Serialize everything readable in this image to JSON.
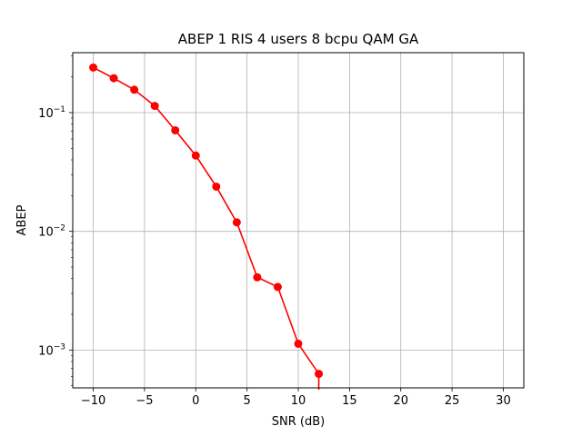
{
  "chart_data": {
    "type": "line",
    "title": "ABEP 1 RIS 4 users 8 bcpu QAM GA",
    "xlabel": "SNR (dB)",
    "ylabel": "ABEP",
    "x": [
      -10,
      -8,
      -6,
      -4,
      -2,
      0,
      2,
      4,
      6,
      8,
      10,
      12
    ],
    "series": [
      {
        "values": [
          0.24,
          0.195,
          0.156,
          0.114,
          0.071,
          0.0435,
          0.0238,
          0.0119,
          0.0041,
          0.0034,
          0.00113,
          0.00063
        ],
        "color": "#ff0000",
        "marker": "circle"
      }
    ],
    "xlim": [
      -12,
      32
    ],
    "ylim": [
      0.00048,
      0.32
    ],
    "yscale": "log",
    "xticks": [
      -10,
      -5,
      0,
      5,
      10,
      15,
      20,
      25,
      30
    ],
    "xtick_labels": [
      "−10",
      "−5",
      "0",
      "5",
      "10",
      "15",
      "20",
      "25",
      "30"
    ],
    "yticks": [
      0.001,
      0.01,
      0.1
    ],
    "ytick_labels": [
      {
        "base": "10",
        "exp": "−3"
      },
      {
        "base": "10",
        "exp": "−2"
      },
      {
        "base": "10",
        "exp": "−1"
      }
    ],
    "grid": true,
    "grid_color": "#b0b0b0",
    "line_drops_below_axis_after_last_point": true
  }
}
